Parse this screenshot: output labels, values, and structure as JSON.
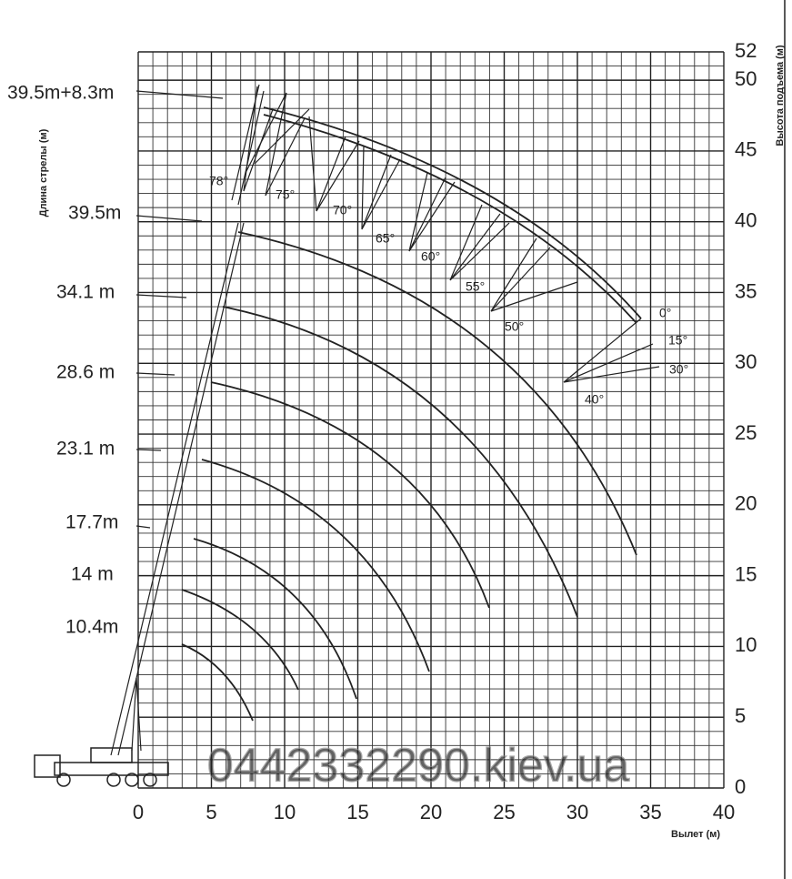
{
  "chart_data": {
    "type": "crane-range",
    "x_label": "Вылет (м)",
    "y_label": "Высота подъема (м)",
    "boom_axis_label": "Длина стрелы (м)",
    "xlim": [
      0,
      40
    ],
    "ylim": [
      0,
      52
    ],
    "xticks": [
      0,
      5,
      10,
      15,
      20,
      25,
      30,
      35,
      40
    ],
    "yticks": [
      0,
      5,
      10,
      15,
      20,
      25,
      30,
      35,
      40,
      45,
      50,
      52
    ],
    "boom_lengths": [
      "39.5m+8.3m",
      "39.5m",
      "34.1 m",
      "28.6 m",
      "23.1 m",
      "17.7m",
      "14 m",
      "10.4m"
    ],
    "jib_angles": [
      "78°",
      "75°",
      "70°",
      "65°",
      "60°",
      "55°",
      "50°",
      "0°",
      "15°",
      "30°",
      "40°"
    ],
    "watermark": "0442332290.kiev.ua"
  }
}
